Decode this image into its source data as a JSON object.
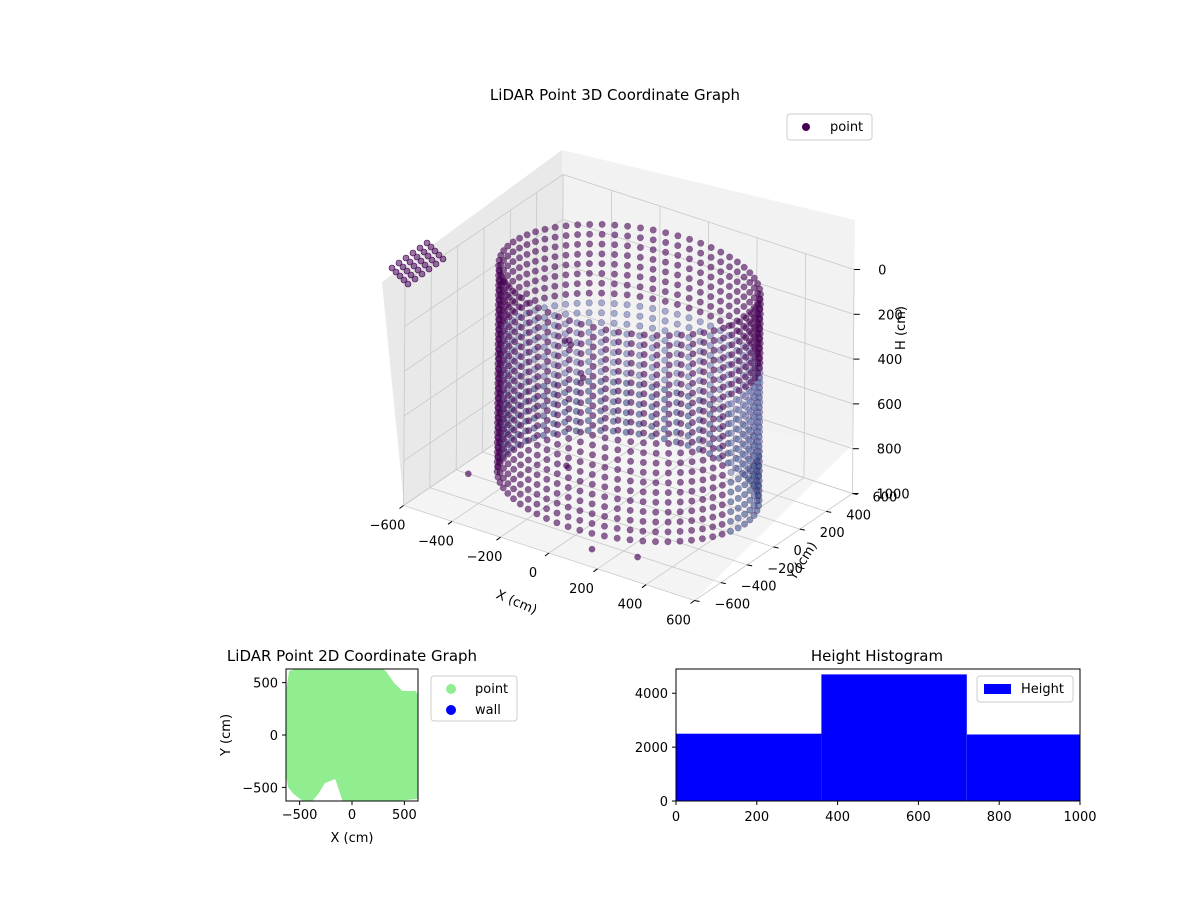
{
  "chart_data": [
    {
      "type": "scatter",
      "projection": "3d",
      "title": "LiDAR Point 3D Coordinate Graph",
      "xlabel": "X (cm)",
      "ylabel": "Y (cm)",
      "zlabel": "H (cm)",
      "xlim": [
        -600,
        600
      ],
      "ylim": [
        -600,
        600
      ],
      "zlim": [
        1000,
        0
      ],
      "x_ticks": [
        "−600",
        "−400",
        "−200",
        "0",
        "200",
        "400",
        "600"
      ],
      "y_ticks": [
        "−600",
        "−400",
        "−200",
        "0",
        "200",
        "400",
        "600"
      ],
      "z_ticks": [
        "0",
        "200",
        "400",
        "600",
        "800",
        "1000"
      ],
      "z_inverted": true,
      "legend": {
        "entries": [
          "point"
        ],
        "placement": "top-right"
      },
      "series": [
        {
          "name": "point",
          "colormap": "viridis (dark purple to blue)",
          "color": "#440154"
        }
      ],
      "shape": {
        "description": "cylindrical wall of points around origin",
        "radius_cm": 480,
        "height_range_cm": [
          0,
          1000
        ]
      },
      "outliers": [
        {
          "x": -600,
          "y": 150,
          "z": 300
        },
        {
          "x": -520,
          "y": 520,
          "z": 700
        },
        {
          "x": -480,
          "y": 400,
          "z": 620
        },
        {
          "x": -200,
          "y": -100,
          "z": 880
        },
        {
          "x": 150,
          "y": -550,
          "z": 950
        },
        {
          "x": -550,
          "y": -200,
          "z": 1000
        },
        {
          "x": 300,
          "y": -480,
          "z": 960
        },
        {
          "x": -350,
          "y": 300,
          "z": 700
        }
      ],
      "grid": true
    },
    {
      "type": "scatter",
      "title": "LiDAR Point 2D Coordinate Graph",
      "xlabel": "X (cm)",
      "ylabel": "Y (cm)",
      "xlim": [
        -630,
        630
      ],
      "ylim": [
        -630,
        630
      ],
      "x_ticks": [
        "−500",
        "0",
        "500"
      ],
      "y_ticks": [
        "−500",
        "0",
        "500"
      ],
      "legend": {
        "entries": [
          "point",
          "wall"
        ],
        "placement": "outside-right"
      },
      "series": [
        {
          "name": "point",
          "color": "#90ee90"
        },
        {
          "name": "wall",
          "color": "#0000ff",
          "points": []
        }
      ],
      "coverage_polygon": [
        [
          -600,
          610
        ],
        [
          -540,
          630
        ],
        [
          -280,
          630
        ],
        [
          300,
          630
        ],
        [
          330,
          600
        ],
        [
          400,
          500
        ],
        [
          480,
          420
        ],
        [
          610,
          420
        ],
        [
          630,
          380
        ],
        [
          630,
          -610
        ],
        [
          420,
          -630
        ],
        [
          -90,
          -630
        ],
        [
          -160,
          -420
        ],
        [
          -260,
          -460
        ],
        [
          -320,
          -560
        ],
        [
          -380,
          -630
        ],
        [
          -470,
          -630
        ],
        [
          -560,
          -560
        ],
        [
          -610,
          -500
        ],
        [
          -630,
          -380
        ],
        [
          -630,
          420
        ]
      ]
    },
    {
      "type": "bar",
      "subtype": "histogram",
      "title": "Height Histogram",
      "xlim": [
        0,
        1000
      ],
      "ylim": [
        0,
        4900
      ],
      "x_ticks": [
        "0",
        "200",
        "400",
        "600",
        "800",
        "1000"
      ],
      "y_ticks": [
        "0",
        "2000",
        "4000"
      ],
      "bins": [
        {
          "x0": 0,
          "x1": 360,
          "count": 2500
        },
        {
          "x0": 360,
          "x1": 720,
          "count": 4700
        },
        {
          "x0": 720,
          "x1": 1000,
          "count": 2470
        }
      ],
      "legend": {
        "entries": [
          "Height"
        ],
        "placement": "top-right"
      },
      "series": [
        {
          "name": "Height",
          "color": "#0000ff"
        }
      ]
    }
  ],
  "colors": {
    "pane": "#f2f2f2",
    "pane_side": "#ebebeb",
    "grid": "#c8c8c8",
    "point_dark": "#440154",
    "point_mid": "#3b528b",
    "point_light": "#6a7fb0",
    "green": "#90ee90",
    "blue": "#0000ff"
  }
}
